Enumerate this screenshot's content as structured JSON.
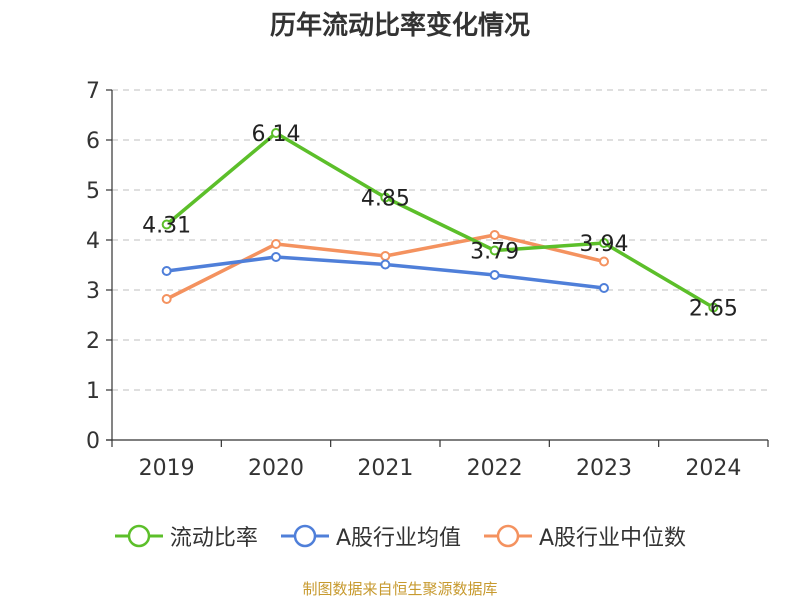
{
  "title": "历年流动比率变化情况",
  "source": "制图数据来自恒生聚源数据库",
  "chart_data": {
    "type": "line",
    "title": "历年流动比率变化情况",
    "xlabel": "",
    "ylabel": "",
    "x": [
      "2019",
      "2020",
      "2021",
      "2022",
      "2023",
      "2024"
    ],
    "ylim": [
      0,
      7
    ],
    "yticks": [
      "0",
      "1",
      "2",
      "3",
      "4",
      "5",
      "6",
      "7"
    ],
    "grid": "horizontal-dashed",
    "legend_position": "bottom",
    "series": [
      {
        "name": "流动比率",
        "color": "#5cbf2a",
        "values": [
          4.31,
          6.14,
          4.85,
          3.79,
          3.94,
          2.65
        ],
        "labels": [
          "4.31",
          "6.14",
          "4.85",
          "3.79",
          "3.94",
          "2.65"
        ]
      },
      {
        "name": "A股行业均值",
        "color": "#4f7fd9",
        "values": [
          3.38,
          3.66,
          3.51,
          3.3,
          3.04,
          null
        ]
      },
      {
        "name": "A股行业中位数",
        "color": "#f4925f",
        "values": [
          2.82,
          3.92,
          3.68,
          4.1,
          3.57,
          null
        ]
      }
    ]
  }
}
